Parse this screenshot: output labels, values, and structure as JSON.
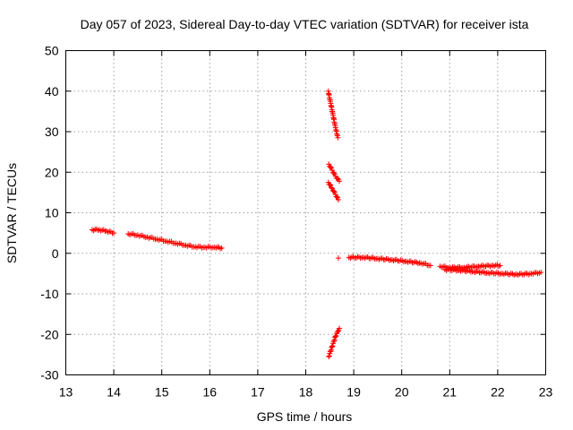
{
  "chart_data": {
    "type": "scatter",
    "title": "Day 057 of 2023, Sidereal Day-to-day VTEC variation (SDTVAR) for receiver ista",
    "xlabel": "GPS time / hours",
    "ylabel": "SDTVAR / TECUs",
    "xlim": [
      13,
      23
    ],
    "ylim": [
      -30,
      50
    ],
    "xticks": [
      13,
      14,
      15,
      16,
      17,
      18,
      19,
      20,
      21,
      22,
      23
    ],
    "yticks": [
      -30,
      -20,
      -10,
      0,
      10,
      20,
      30,
      40,
      50
    ],
    "grid": true,
    "marker": "+",
    "marker_color": "#ff0000",
    "segments": [
      {
        "x": [
          13.55,
          13.7,
          13.85,
          14.0
        ],
        "y": [
          5.8,
          5.8,
          5.5,
          5.0
        ]
      },
      {
        "x": [
          14.3,
          14.5,
          14.7,
          14.9,
          15.1,
          15.3,
          15.5,
          15.7,
          15.9,
          16.1,
          16.25
        ],
        "y": [
          4.8,
          4.5,
          4.0,
          3.5,
          3.0,
          2.5,
          2.0,
          1.6,
          1.5,
          1.5,
          1.3
        ]
      },
      {
        "x": [
          18.47,
          18.52,
          18.57,
          18.62,
          18.67
        ],
        "y": [
          40,
          37,
          34,
          31,
          28.5
        ]
      },
      {
        "x": [
          18.48,
          18.55,
          18.62,
          18.7
        ],
        "y": [
          22,
          20.5,
          19,
          17.8
        ]
      },
      {
        "x": [
          18.47,
          18.55,
          18.62,
          18.68
        ],
        "y": [
          17.5,
          16,
          14.5,
          13.2
        ]
      },
      {
        "x": [
          18.68
        ],
        "y": [
          -1.2
        ]
      },
      {
        "x": [
          18.48,
          18.55,
          18.62,
          18.7
        ],
        "y": [
          -25.5,
          -23,
          -20.5,
          -18.5
        ]
      },
      {
        "x": [
          18.9,
          19.2,
          19.5,
          19.8,
          20.1,
          20.4,
          20.6
        ],
        "y": [
          -1,
          -1,
          -1.3,
          -1.6,
          -2,
          -2.4,
          -3
        ]
      },
      {
        "x": [
          20.8,
          21.0,
          21.3,
          21.6,
          21.9,
          22.05
        ],
        "y": [
          -3.2,
          -3.5,
          -3.5,
          -3.2,
          -3,
          -3
        ]
      },
      {
        "x": [
          20.9,
          21.2,
          21.5,
          21.8,
          22.1,
          22.4,
          22.7,
          22.9
        ],
        "y": [
          -4,
          -4.2,
          -4.5,
          -4.8,
          -5,
          -5.2,
          -5,
          -4.7
        ]
      }
    ]
  }
}
